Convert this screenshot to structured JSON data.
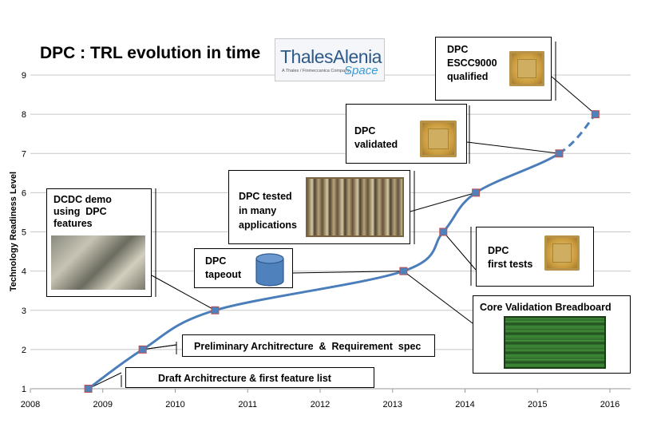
{
  "chart_data": {
    "type": "line",
    "title": "DPC : TRL evolution in time",
    "ylabel": "Technology Readiness Level",
    "xlabel": "",
    "xlim": [
      2008,
      2016
    ],
    "ylim": [
      1,
      9
    ],
    "x_ticks": [
      "2008",
      "2009",
      "2010",
      "2011",
      "2012",
      "2013",
      "2014",
      "2015",
      "2016"
    ],
    "y_ticks": [
      "1",
      "2",
      "3",
      "4",
      "5",
      "6",
      "7",
      "8",
      "9"
    ],
    "grid": "horizontal",
    "series": [
      {
        "points": [
          {
            "x": 2008.8,
            "y": 1
          },
          {
            "x": 2009.55,
            "y": 2
          },
          {
            "x": 2010.55,
            "y": 3
          },
          {
            "x": 2013.15,
            "y": 4
          },
          {
            "x": 2013.7,
            "y": 5
          },
          {
            "x": 2014.15,
            "y": 6
          },
          {
            "x": 2015.3,
            "y": 7
          },
          {
            "x": 2015.8,
            "y": 8
          }
        ],
        "dashed_after_index": 6,
        "color": "#4a7ebb",
        "marker_fill": "#4f81bd",
        "marker_edge": "#c0504d"
      }
    ],
    "annotations": [
      {
        "text": "Draft Architrecture & first feature list",
        "point": 0
      },
      {
        "text": "Preliminary Architrecture  &  Requirement  spec",
        "point": 1
      },
      {
        "text": "DCDC demo using DPC features",
        "point": 2
      },
      {
        "text": "DPC tapeout",
        "point": 3
      },
      {
        "text": "Core Validation Breadboard",
        "point": 3
      },
      {
        "text": "DPC first tests",
        "point": 4
      },
      {
        "text": "DPC tested in many applications",
        "point": 5
      },
      {
        "text": "DPC validated",
        "point": 6
      },
      {
        "text": "DPC ESCC9000 qualified",
        "point": 7
      }
    ]
  },
  "logo": {
    "name": "ThalesAlenia",
    "tagline": "A Thales / Finmeccanica Company",
    "space": "Space"
  },
  "labels": {
    "draft": "Draft Architrecture & first feature list",
    "prelim": "Preliminary Architrecture  &  Requirement  spec",
    "dcdc": [
      "DCDC demo",
      "using  DPC",
      "features"
    ],
    "tapeout": [
      "DPC",
      "tapeout"
    ],
    "core": "Core Validation Breadboard",
    "firsttests": [
      "DPC",
      "first tests"
    ],
    "tested": [
      "DPC tested",
      "in many",
      "applications"
    ],
    "validated": [
      "DPC",
      "validated"
    ],
    "qualified": [
      "DPC",
      "ESCC9000",
      "qualified"
    ]
  },
  "colors": {
    "line": "#4a7ebb",
    "marker": "#4f81bd",
    "marker_edge": "#c0504d",
    "grid": "#c8c8c8"
  }
}
